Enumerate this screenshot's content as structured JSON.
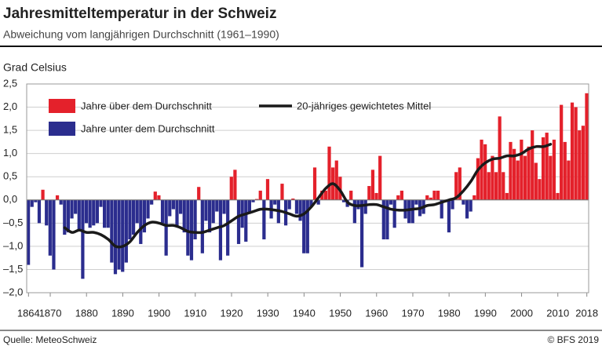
{
  "chart_data": {
    "type": "bar",
    "title": "Jahresmitteltemperatur in der Schweiz",
    "subtitle": "Abweichung vom langjährigen Durchschnitt (1961–1990)",
    "y_label": "Grad Celsius",
    "source": "Quelle: MeteoSchweiz",
    "credit": "© BFS 2019",
    "xlim": [
      1863.5,
      2018.5
    ],
    "xticks": [
      1864,
      1870,
      1880,
      1890,
      1900,
      1910,
      1920,
      1930,
      1940,
      1950,
      1960,
      1970,
      1980,
      1990,
      2000,
      2010,
      2018
    ],
    "ylim": [
      -2.0,
      2.5
    ],
    "yticks": [
      {
        "value": 2.5,
        "label": "2,5"
      },
      {
        "value": 2.0,
        "label": "2,0"
      },
      {
        "value": 1.5,
        "label": "1,5"
      },
      {
        "value": 1.0,
        "label": "1,0"
      },
      {
        "value": 0.5,
        "label": "0,5"
      },
      {
        "value": 0,
        "label": "0,0"
      },
      {
        "value": -0.5,
        "label": "–0,5"
      },
      {
        "value": -1.0,
        "label": "–1,0"
      },
      {
        "value": -1.5,
        "label": "–1,5"
      },
      {
        "value": -2.0,
        "label": "–2,0"
      }
    ],
    "grid": true,
    "bars": {
      "above": {
        "name": "Jahre über dem Durchschnitt",
        "color": "#e4212b"
      },
      "below": {
        "name": "Jahre unter dem Durchschnitt",
        "color": "#2b2d8e"
      },
      "x": [
        1864,
        1865,
        1866,
        1867,
        1868,
        1869,
        1870,
        1871,
        1872,
        1873,
        1874,
        1875,
        1876,
        1877,
        1878,
        1879,
        1880,
        1881,
        1882,
        1883,
        1884,
        1885,
        1886,
        1887,
        1888,
        1889,
        1890,
        1891,
        1892,
        1893,
        1894,
        1895,
        1896,
        1897,
        1898,
        1899,
        1900,
        1901,
        1902,
        1903,
        1904,
        1905,
        1906,
        1907,
        1908,
        1909,
        1910,
        1911,
        1912,
        1913,
        1914,
        1915,
        1916,
        1917,
        1918,
        1919,
        1920,
        1921,
        1922,
        1923,
        1924,
        1925,
        1926,
        1927,
        1928,
        1929,
        1930,
        1931,
        1932,
        1933,
        1934,
        1935,
        1936,
        1937,
        1938,
        1939,
        1940,
        1941,
        1942,
        1943,
        1944,
        1945,
        1946,
        1947,
        1948,
        1949,
        1950,
        1951,
        1952,
        1953,
        1954,
        1955,
        1956,
        1957,
        1958,
        1959,
        1960,
        1961,
        1962,
        1963,
        1964,
        1965,
        1966,
        1967,
        1968,
        1969,
        1970,
        1971,
        1972,
        1973,
        1974,
        1975,
        1976,
        1977,
        1978,
        1979,
        1980,
        1981,
        1982,
        1983,
        1984,
        1985,
        1986,
        1987,
        1988,
        1989,
        1990,
        1991,
        1992,
        1993,
        1994,
        1995,
        1996,
        1997,
        1998,
        1999,
        2000,
        2001,
        2002,
        2003,
        2004,
        2005,
        2006,
        2007,
        2008,
        2009,
        2010,
        2011,
        2012,
        2013,
        2014,
        2015,
        2016,
        2017,
        2018
      ],
      "values": [
        -1.4,
        -0.15,
        -0.05,
        -0.5,
        0.22,
        -0.55,
        -1.2,
        -1.5,
        0.1,
        -0.1,
        -0.75,
        -0.7,
        -0.4,
        -0.3,
        -0.65,
        -1.7,
        -0.5,
        -0.6,
        -0.55,
        -0.5,
        -0.15,
        -0.6,
        -0.6,
        -1.35,
        -1.6,
        -1.5,
        -1.55,
        -1.35,
        -0.85,
        -0.75,
        -0.5,
        -0.95,
        -0.7,
        -0.4,
        -0.1,
        0.18,
        0.1,
        -0.5,
        -1.2,
        -0.35,
        -0.2,
        -0.55,
        -0.3,
        -0.7,
        -1.2,
        -1.3,
        -0.85,
        0.28,
        -1.15,
        -0.45,
        -0.7,
        -0.5,
        -0.25,
        -1.3,
        -0.3,
        -1.2,
        0.5,
        0.65,
        -0.95,
        -0.6,
        -0.9,
        -0.3,
        -0.05,
        0.02,
        0.2,
        -0.85,
        0.45,
        -0.4,
        -0.1,
        -0.5,
        0.35,
        -0.55,
        -0.2,
        0.03,
        -0.3,
        -0.45,
        -1.15,
        -1.15,
        -0.15,
        0.7,
        -0.1,
        0.2,
        0.2,
        1.15,
        0.7,
        0.85,
        0.5,
        -0.05,
        -0.15,
        0.2,
        -0.5,
        -0.2,
        -1.45,
        -0.3,
        0.3,
        0.65,
        0.15,
        0.95,
        -0.85,
        -0.85,
        -0.1,
        -0.6,
        0.1,
        0.2,
        -0.4,
        -0.5,
        -0.5,
        -0.1,
        -0.35,
        -0.3,
        0.1,
        0.05,
        0.2,
        0.2,
        -0.4,
        -0.05,
        -0.7,
        -0.2,
        0.6,
        0.7,
        -0.1,
        -0.4,
        -0.25,
        0.1,
        0.9,
        1.3,
        1.2,
        0.6,
        0.95,
        0.6,
        1.8,
        0.6,
        0.15,
        1.25,
        1.1,
        0.85,
        1.3,
        0.95,
        1.15,
        1.5,
        0.8,
        0.45,
        1.35,
        1.45,
        0.95,
        1.3,
        0.15,
        2.05,
        1.25,
        0.85,
        2.1,
        2.0,
        1.5,
        1.6,
        2.3
      ]
    },
    "line": {
      "name": "20-jähriges gewichtetes Mittel",
      "color": "#1a1a1a",
      "x": [
        1874,
        1876,
        1878,
        1880,
        1882,
        1884,
        1886,
        1888,
        1890,
        1892,
        1894,
        1896,
        1898,
        1900,
        1902,
        1904,
        1906,
        1908,
        1910,
        1912,
        1914,
        1916,
        1918,
        1920,
        1922,
        1924,
        1926,
        1928,
        1930,
        1932,
        1934,
        1936,
        1938,
        1940,
        1942,
        1944,
        1946,
        1948,
        1950,
        1952,
        1954,
        1956,
        1958,
        1960,
        1962,
        1964,
        1966,
        1968,
        1970,
        1972,
        1974,
        1976,
        1978,
        1980,
        1982,
        1984,
        1986,
        1988,
        1990,
        1992,
        1994,
        1996,
        1998,
        2000,
        2002,
        2004,
        2006,
        2008
      ],
      "values": [
        -0.6,
        -0.7,
        -0.65,
        -0.7,
        -0.7,
        -0.75,
        -0.85,
        -1.0,
        -1.0,
        -0.9,
        -0.7,
        -0.55,
        -0.48,
        -0.5,
        -0.55,
        -0.55,
        -0.6,
        -0.68,
        -0.7,
        -0.7,
        -0.65,
        -0.6,
        -0.55,
        -0.45,
        -0.35,
        -0.3,
        -0.25,
        -0.2,
        -0.2,
        -0.22,
        -0.25,
        -0.3,
        -0.35,
        -0.3,
        -0.15,
        0.05,
        0.25,
        0.35,
        0.2,
        -0.05,
        -0.12,
        -0.12,
        -0.1,
        -0.1,
        -0.15,
        -0.2,
        -0.22,
        -0.22,
        -0.2,
        -0.18,
        -0.12,
        -0.1,
        -0.05,
        0.0,
        0.05,
        0.2,
        0.4,
        0.65,
        0.8,
        0.88,
        0.9,
        0.95,
        0.95,
        1.0,
        1.1,
        1.15,
        1.15,
        1.2
      ]
    }
  }
}
